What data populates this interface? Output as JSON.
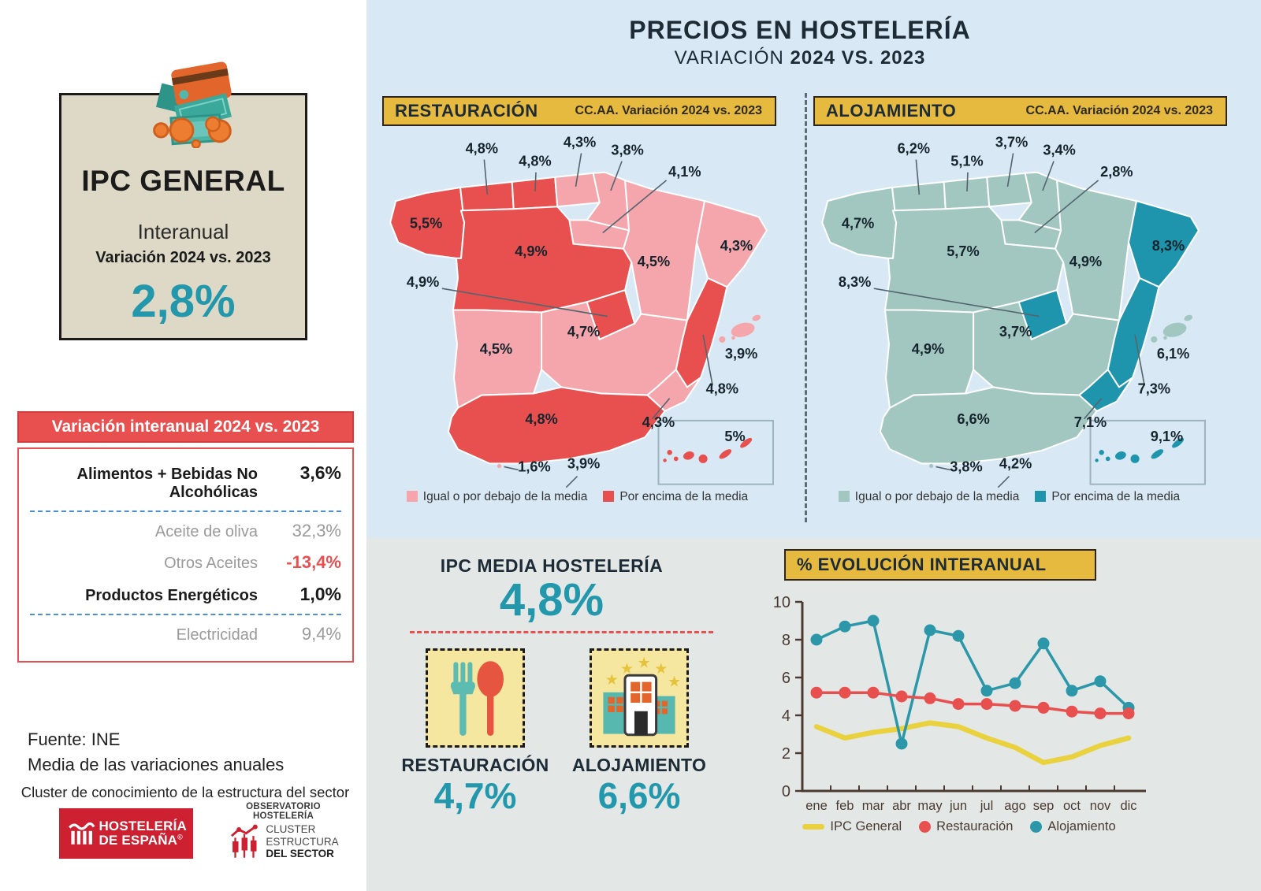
{
  "header": {
    "title": "PRECIOS EN HOSTELERÍA",
    "subtitle_regular": "VARIACIÓN ",
    "subtitle_bold": "2024 VS. 2023"
  },
  "ipc_general": {
    "title": "IPC GENERAL",
    "subtitle": "Interanual",
    "note": "Variación 2024 vs. 2023",
    "value": "2,8%",
    "accent_color": "#2397ab"
  },
  "variation_table": {
    "header": "Variación interanual 2024 vs. 2023",
    "rows": [
      {
        "label": "Alimentos + Bebidas No Alcohólicas",
        "value": "3,6%",
        "style": "strong",
        "value_style": "normal",
        "divider_after": true
      },
      {
        "label": "Aceite de oliva",
        "value": "32,3%",
        "style": "muted",
        "value_style": "normal",
        "divider_after": false
      },
      {
        "label": "Otros Aceites",
        "value": "-13,4%",
        "style": "muted",
        "value_style": "negative",
        "divider_after": false
      },
      {
        "label": "Productos Energéticos",
        "value": "1,0%",
        "style": "strong",
        "value_style": "normal",
        "divider_after": true
      },
      {
        "label": "Electricidad",
        "value": "9,4%",
        "style": "muted",
        "value_style": "normal",
        "divider_after": false
      }
    ]
  },
  "source": {
    "line1": "Fuente: INE",
    "line2": "Media de las variaciones anuales",
    "caption": "Cluster de conocimiento de la estructura del sector"
  },
  "logos": {
    "hosteleria": {
      "line1": "HOSTELERÍA",
      "line2": "DE ESPAÑA",
      "mark": "©"
    },
    "observatorio": {
      "top": "OBSERVATORIO HOSTELERÍA",
      "line1": "CLUSTER",
      "line2": "ESTRUCTURA",
      "line3": "DEL SECTOR"
    }
  },
  "maps": {
    "restauracion": {
      "title": "RESTAURACIÓN",
      "note": "CC.AA. Variación 2024 vs. 2023",
      "color_below": "#f4a6ac",
      "color_above": "#e8504f",
      "legend": [
        {
          "label": "Igual o por debajo de la media",
          "key": "below"
        },
        {
          "label": "Por encima de la media",
          "key": "above"
        }
      ],
      "regions": [
        {
          "id": "galicia",
          "value": "5,5%",
          "above": true
        },
        {
          "id": "asturias",
          "value": "4,8%",
          "above": true
        },
        {
          "id": "cantabria",
          "value": "4,8%",
          "above": true
        },
        {
          "id": "paisvasco",
          "value": "4,3%",
          "above": false
        },
        {
          "id": "navarra",
          "value": "3,8%",
          "above": false
        },
        {
          "id": "larioja",
          "value": "4,1%",
          "above": false
        },
        {
          "id": "castillayleon",
          "value": "4,9%",
          "above": true
        },
        {
          "id": "aragon",
          "value": "4,5%",
          "above": false
        },
        {
          "id": "cataluna",
          "value": "4,3%",
          "above": false
        },
        {
          "id": "madrid",
          "value": "4,9%",
          "above": true
        },
        {
          "id": "castillalamancha",
          "value": "4,7%",
          "above": false
        },
        {
          "id": "extremadura",
          "value": "4,5%",
          "above": false
        },
        {
          "id": "valencia",
          "value": "4,8%",
          "above": true
        },
        {
          "id": "murcia",
          "value": "4,3%",
          "above": false
        },
        {
          "id": "andalucia",
          "value": "4,8%",
          "above": true
        },
        {
          "id": "baleares",
          "value": "3,9%",
          "above": false
        },
        {
          "id": "canarias",
          "value": "5%",
          "above": true
        },
        {
          "id": "ceuta",
          "value": "1,6%",
          "above": false
        },
        {
          "id": "melilla",
          "value": "3,9%",
          "above": false
        }
      ]
    },
    "alojamiento": {
      "title": "ALOJAMIENTO",
      "note": "CC.AA. Variación 2024 vs. 2023",
      "color_below": "#a2c7c1",
      "color_above": "#1e95ad",
      "legend": [
        {
          "label": "Igual o por debajo de la media",
          "key": "below"
        },
        {
          "label": "Por encima de la media",
          "key": "above"
        }
      ],
      "regions": [
        {
          "id": "galicia",
          "value": "4,7%",
          "above": false
        },
        {
          "id": "asturias",
          "value": "6,2%",
          "above": false
        },
        {
          "id": "cantabria",
          "value": "5,1%",
          "above": false
        },
        {
          "id": "paisvasco",
          "value": "3,7%",
          "above": false
        },
        {
          "id": "navarra",
          "value": "3,4%",
          "above": false
        },
        {
          "id": "larioja",
          "value": "2,8%",
          "above": false
        },
        {
          "id": "castillayleon",
          "value": "5,7%",
          "above": false
        },
        {
          "id": "aragon",
          "value": "4,9%",
          "above": false
        },
        {
          "id": "cataluna",
          "value": "8,3%",
          "above": true
        },
        {
          "id": "madrid",
          "value": "8,3%",
          "above": true
        },
        {
          "id": "castillalamancha",
          "value": "3,7%",
          "above": false
        },
        {
          "id": "extremadura",
          "value": "4,9%",
          "above": false
        },
        {
          "id": "valencia",
          "value": "7,3%",
          "above": true
        },
        {
          "id": "murcia",
          "value": "7,1%",
          "above": true
        },
        {
          "id": "andalucia",
          "value": "6,6%",
          "above": false
        },
        {
          "id": "baleares",
          "value": "6,1%",
          "above": false
        },
        {
          "id": "canarias",
          "value": "9,1%",
          "above": true
        },
        {
          "id": "ceuta",
          "value": "3,8%",
          "above": false
        },
        {
          "id": "melilla",
          "value": "4,2%",
          "above": false
        }
      ]
    }
  },
  "summary": {
    "title": "IPC MEDIA HOSTELERÍA",
    "value": "4,8%",
    "items": [
      {
        "label": "RESTAURACIÓN",
        "value": "4,7%",
        "icon": "fork-spoon-icon"
      },
      {
        "label": "ALOJAMIENTO",
        "value": "6,6%",
        "icon": "hotel-stars-icon"
      }
    ]
  },
  "chart_data": {
    "type": "line",
    "title": "% EVOLUCIÓN INTERANUAL",
    "x": [
      "ene",
      "feb",
      "mar",
      "abr",
      "may",
      "jun",
      "jul",
      "ago",
      "sep",
      "oct",
      "nov",
      "dic"
    ],
    "ylim": [
      0,
      10
    ],
    "yticks": [
      0,
      2,
      4,
      6,
      8,
      10
    ],
    "grid": false,
    "legend_position": "bottom",
    "series": [
      {
        "name": "IPC General",
        "color": "#e9d23e",
        "marker": false,
        "values": [
          3.4,
          2.8,
          3.1,
          3.3,
          3.6,
          3.4,
          2.8,
          2.3,
          1.5,
          1.8,
          2.4,
          2.8
        ]
      },
      {
        "name": "Restauración",
        "color": "#e8504f",
        "marker": true,
        "values": [
          5.2,
          5.2,
          5.2,
          5.0,
          4.9,
          4.6,
          4.6,
          4.5,
          4.4,
          4.2,
          4.1,
          4.1
        ]
      },
      {
        "name": "Alojamiento",
        "color": "#2b97a9",
        "marker": true,
        "values": [
          8.0,
          8.7,
          9.0,
          2.5,
          8.5,
          8.2,
          5.3,
          5.7,
          7.8,
          5.3,
          5.8,
          4.4
        ]
      }
    ]
  }
}
